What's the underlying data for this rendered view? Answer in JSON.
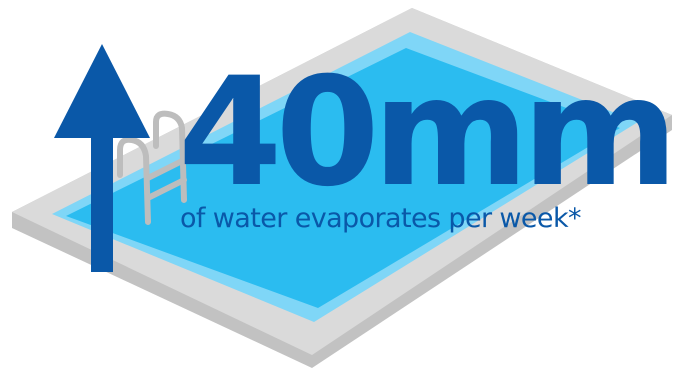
{
  "figure": {
    "headline": "40mm",
    "subline": "of water evaporates per week*"
  },
  "colors": {
    "deck": "#d9d9d9",
    "deck_edge": "#c2c2c2",
    "water": "#2bbcf0",
    "water_light": "#7fd6f7",
    "brand_blue": "#0a58a8",
    "ladder": "#bdbdbd"
  },
  "icons": [
    "pool-illustration",
    "up-arrow-icon",
    "pool-ladder-icon"
  ]
}
